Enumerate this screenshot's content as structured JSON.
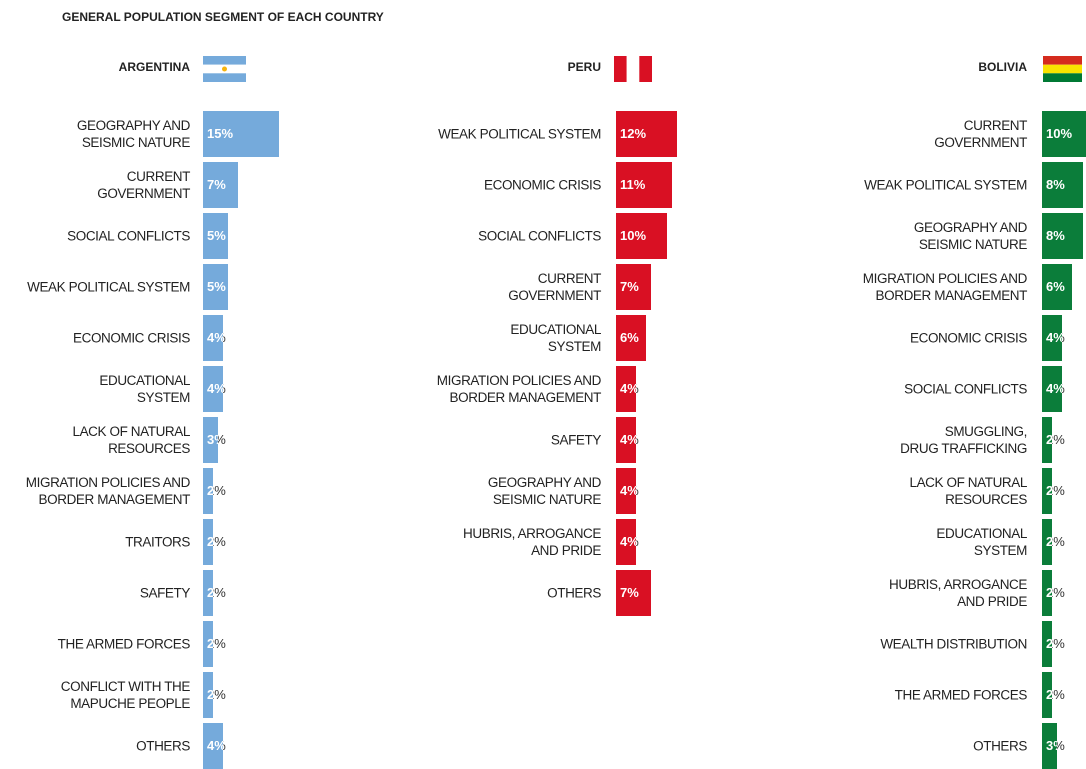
{
  "title": "GENERAL POPULATION SEGMENT OF EACH COUNTRY",
  "chart_data": [
    {
      "type": "bar",
      "title": "ARGENTINA",
      "color": "#75aadb",
      "xlim": [
        0,
        20
      ],
      "categories": [
        "GEOGRAPHY AND\nSEISMIC NATURE",
        "CURRENT\nGOVERNMENT",
        "SOCIAL CONFLICTS",
        "WEAK POLITICAL SYSTEM",
        "ECONOMIC CRISIS",
        "EDUCATIONAL\nSYSTEM",
        "LACK OF NATURAL\nRESOURCES",
        "MIGRATION POLICIES AND\nBORDER MANAGEMENT",
        "TRAITORS",
        "SAFETY",
        "THE ARMED FORCES",
        "CONFLICT WITH THE\nMAPUCHE PEOPLE",
        "OTHERS"
      ],
      "values": [
        15,
        7,
        5,
        5,
        4,
        4,
        3,
        2,
        2,
        2,
        2,
        2,
        4
      ],
      "value_labels": [
        "15%",
        "7%",
        "5%",
        "5%",
        "4%",
        "4%",
        "3%",
        "2%",
        "2%",
        "2%",
        "2%",
        "2%",
        "4%"
      ]
    },
    {
      "type": "bar",
      "title": "PERU",
      "color": "#d91023",
      "xlim": [
        0,
        20
      ],
      "categories": [
        "WEAK POLITICAL SYSTEM",
        "ECONOMIC CRISIS",
        "SOCIAL CONFLICTS",
        "CURRENT\nGOVERNMENT",
        "EDUCATIONAL\nSYSTEM",
        "MIGRATION POLICIES AND\nBORDER MANAGEMENT",
        "SAFETY",
        "GEOGRAPHY AND\nSEISMIC NATURE",
        "HUBRIS, ARROGANCE\nAND PRIDE",
        "OTHERS"
      ],
      "values": [
        12,
        11,
        10,
        7,
        6,
        4,
        4,
        4,
        4,
        7
      ],
      "value_labels": [
        "12%",
        "11%",
        "10%",
        "7%",
        "6%",
        "4%",
        "4%",
        "4%",
        "4%",
        "7%"
      ]
    },
    {
      "type": "bar",
      "title": "BOLIVIA",
      "color": "#0b7d3a",
      "xlim": [
        0,
        20
      ],
      "categories": [
        "CURRENT\nGOVERNMENT",
        "WEAK POLITICAL SYSTEM",
        "GEOGRAPHY AND\nSEISMIC NATURE",
        "MIGRATION POLICIES AND\nBORDER MANAGEMENT",
        "ECONOMIC CRISIS",
        "SOCIAL CONFLICTS",
        "SMUGGLING,\nDRUG TRAFFICKING",
        "LACK OF NATURAL\nRESOURCES",
        "EDUCATIONAL\nSYSTEM",
        "HUBRIS, ARROGANCE\nAND PRIDE",
        "WEALTH DISTRIBUTION",
        "THE ARMED FORCES",
        "OTHERS"
      ],
      "values": [
        10,
        8,
        8,
        6,
        4,
        4,
        2,
        2,
        2,
        2,
        2,
        2,
        3
      ],
      "value_labels": [
        "10%",
        "8%",
        "8%",
        "6%",
        "4%",
        "4%",
        "2%",
        "2%",
        "2%",
        "2%",
        "2%",
        "2%",
        "3%"
      ]
    }
  ]
}
